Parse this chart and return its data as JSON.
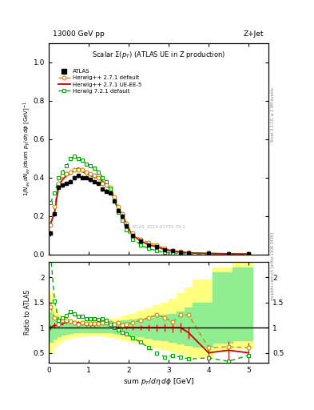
{
  "title_top": "13000 GeV pp",
  "title_right": "Z+Jet",
  "plot_title": "Scalar Σ(p_T) (ATLAS UE in Z production)",
  "ylabel_main": "1/N_{ev} dN_{ev}/dsum p_T/dη dφ  [GeV]^{-1}",
  "ylabel_ratio": "Ratio to ATLAS",
  "xlabel": "sum p_T/dη dφ [GeV]",
  "watermark": "ATLAS_2019-01735-39-1",
  "rivet_text": "Rivet 3.1.10, ≥ 2.9M events",
  "arxiv_text": "mcplots.cern.ch [arXiv:1306.3436]",
  "atlas_x": [
    0.05,
    0.15,
    0.25,
    0.35,
    0.45,
    0.55,
    0.65,
    0.75,
    0.85,
    0.95,
    1.05,
    1.15,
    1.25,
    1.35,
    1.45,
    1.55,
    1.65,
    1.75,
    1.85,
    1.95,
    2.1,
    2.3,
    2.5,
    2.7,
    2.9,
    3.1,
    3.3,
    3.5,
    4.0,
    4.5,
    5.0
  ],
  "atlas_y": [
    0.11,
    0.21,
    0.35,
    0.36,
    0.37,
    0.38,
    0.4,
    0.41,
    0.4,
    0.4,
    0.39,
    0.38,
    0.37,
    0.34,
    0.33,
    0.32,
    0.28,
    0.23,
    0.2,
    0.15,
    0.1,
    0.07,
    0.05,
    0.04,
    0.025,
    0.018,
    0.012,
    0.008,
    0.005,
    0.003,
    0.002
  ],
  "atlas_yerr": [
    0.015,
    0.012,
    0.01,
    0.01,
    0.01,
    0.01,
    0.01,
    0.01,
    0.01,
    0.01,
    0.01,
    0.01,
    0.01,
    0.01,
    0.01,
    0.01,
    0.01,
    0.01,
    0.01,
    0.01,
    0.008,
    0.006,
    0.005,
    0.004,
    0.003,
    0.003,
    0.002,
    0.002,
    0.001,
    0.001,
    0.001
  ],
  "hw271_x": [
    0.05,
    0.15,
    0.25,
    0.35,
    0.45,
    0.55,
    0.65,
    0.75,
    0.85,
    0.95,
    1.05,
    1.15,
    1.25,
    1.35,
    1.45,
    1.55,
    1.65,
    1.75,
    1.85,
    1.95,
    2.1,
    2.3,
    2.5,
    2.7,
    2.9,
    3.1,
    3.3,
    3.5,
    4.0,
    4.5,
    5.0
  ],
  "hw271_y": [
    0.155,
    0.25,
    0.37,
    0.41,
    0.42,
    0.43,
    0.44,
    0.44,
    0.44,
    0.43,
    0.42,
    0.41,
    0.4,
    0.37,
    0.36,
    0.35,
    0.3,
    0.25,
    0.21,
    0.16,
    0.11,
    0.08,
    0.06,
    0.05,
    0.03,
    0.02,
    0.015,
    0.01,
    0.006,
    0.004,
    0.003
  ],
  "hw271ue_x": [
    0.05,
    0.15,
    0.25,
    0.35,
    0.45,
    0.55,
    0.65,
    0.75,
    0.85,
    0.95,
    1.05,
    1.15,
    1.25,
    1.35,
    1.45,
    1.55,
    1.65,
    1.75,
    1.85,
    1.95,
    2.1,
    2.3,
    2.5,
    2.7,
    2.9,
    3.1,
    3.3,
    3.5,
    4.0,
    4.5,
    5.0
  ],
  "hw271ue_y": [
    0.16,
    0.22,
    0.36,
    0.39,
    0.41,
    0.42,
    0.44,
    0.45,
    0.43,
    0.42,
    0.41,
    0.4,
    0.4,
    0.38,
    0.36,
    0.34,
    0.28,
    0.23,
    0.2,
    0.15,
    0.1,
    0.07,
    0.05,
    0.04,
    0.025,
    0.018,
    0.012,
    0.008,
    0.005,
    0.003,
    0.002
  ],
  "hw721_x": [
    0.05,
    0.15,
    0.25,
    0.35,
    0.45,
    0.55,
    0.65,
    0.75,
    0.85,
    0.95,
    1.05,
    1.15,
    1.25,
    1.35,
    1.45,
    1.55,
    1.65,
    1.75,
    1.85,
    1.95,
    2.1,
    2.3,
    2.5,
    2.7,
    2.9,
    3.1,
    3.3,
    3.5,
    4.0,
    4.5,
    5.0
  ],
  "hw721_y": [
    0.27,
    0.32,
    0.4,
    0.43,
    0.46,
    0.5,
    0.51,
    0.5,
    0.49,
    0.47,
    0.46,
    0.45,
    0.43,
    0.4,
    0.38,
    0.34,
    0.28,
    0.22,
    0.18,
    0.13,
    0.08,
    0.05,
    0.03,
    0.02,
    0.01,
    0.008,
    0.005,
    0.003,
    0.002,
    0.001,
    0.001
  ],
  "ratio_hw271_y": [
    1.41,
    1.19,
    1.06,
    1.14,
    1.14,
    1.13,
    1.1,
    1.07,
    1.1,
    1.075,
    1.08,
    1.08,
    1.08,
    1.09,
    1.09,
    1.09,
    1.07,
    1.09,
    1.05,
    1.07,
    1.1,
    1.14,
    1.2,
    1.25,
    1.2,
    1.11,
    1.25,
    1.25,
    0.6,
    0.62,
    0.6
  ],
  "ratio_hw271ue_y": [
    1.0,
    1.05,
    1.03,
    1.08,
    1.11,
    1.11,
    1.1,
    1.1,
    1.075,
    1.05,
    1.05,
    1.05,
    1.08,
    1.12,
    1.09,
    1.06,
    1.0,
    1.0,
    1.0,
    1.0,
    1.0,
    1.0,
    1.0,
    1.0,
    1.0,
    1.0,
    1.0,
    0.9,
    0.5,
    0.55,
    0.5
  ],
  "ratio_hw271ue_yerr": [
    0.05,
    0.04,
    0.03,
    0.03,
    0.03,
    0.03,
    0.03,
    0.03,
    0.03,
    0.03,
    0.03,
    0.03,
    0.03,
    0.03,
    0.03,
    0.03,
    0.03,
    0.03,
    0.03,
    0.03,
    0.04,
    0.05,
    0.06,
    0.07,
    0.08,
    0.09,
    0.1,
    0.12,
    0.15,
    0.18,
    0.2
  ],
  "ratio_hw721_y": [
    2.45,
    1.52,
    1.14,
    1.19,
    1.24,
    1.32,
    1.275,
    1.22,
    1.225,
    1.175,
    1.18,
    1.18,
    1.16,
    1.18,
    1.15,
    1.06,
    1.0,
    0.957,
    0.9,
    0.87,
    0.8,
    0.71,
    0.6,
    0.5,
    0.42,
    0.44,
    0.42,
    0.375,
    0.4,
    0.33,
    0.45
  ],
  "band_edges_x": [
    0.0,
    0.1,
    0.2,
    0.3,
    0.4,
    0.5,
    0.6,
    0.7,
    0.8,
    0.9,
    1.0,
    1.1,
    1.2,
    1.3,
    1.4,
    1.5,
    1.6,
    1.7,
    1.8,
    1.9,
    2.0,
    2.2,
    2.4,
    2.6,
    2.8,
    3.0,
    3.2,
    3.4,
    3.6,
    4.1,
    4.6,
    5.1
  ],
  "band_green_lo": [
    0.72,
    0.78,
    0.83,
    0.86,
    0.88,
    0.89,
    0.9,
    0.91,
    0.91,
    0.91,
    0.91,
    0.91,
    0.91,
    0.91,
    0.9,
    0.9,
    0.89,
    0.88,
    0.87,
    0.86,
    0.85,
    0.83,
    0.8,
    0.77,
    0.74,
    0.71,
    0.68,
    0.65,
    0.62,
    0.7,
    0.75,
    0.75
  ],
  "band_green_hi": [
    1.3,
    1.2,
    1.15,
    1.12,
    1.11,
    1.1,
    1.1,
    1.1,
    1.1,
    1.1,
    1.1,
    1.1,
    1.1,
    1.1,
    1.11,
    1.11,
    1.12,
    1.13,
    1.14,
    1.15,
    1.16,
    1.18,
    1.2,
    1.22,
    1.25,
    1.28,
    1.32,
    1.4,
    1.5,
    2.1,
    2.2,
    2.2
  ],
  "band_yellow_lo": [
    0.5,
    0.62,
    0.7,
    0.75,
    0.78,
    0.8,
    0.82,
    0.83,
    0.84,
    0.84,
    0.84,
    0.84,
    0.84,
    0.84,
    0.83,
    0.82,
    0.81,
    0.79,
    0.77,
    0.75,
    0.73,
    0.69,
    0.65,
    0.61,
    0.57,
    0.53,
    0.49,
    0.45,
    0.42,
    0.55,
    0.6,
    0.6
  ],
  "band_yellow_hi": [
    1.7,
    1.4,
    1.28,
    1.22,
    1.18,
    1.16,
    1.15,
    1.15,
    1.15,
    1.15,
    1.15,
    1.15,
    1.15,
    1.15,
    1.16,
    1.17,
    1.18,
    1.2,
    1.22,
    1.25,
    1.28,
    1.33,
    1.38,
    1.44,
    1.5,
    1.58,
    1.68,
    1.8,
    1.95,
    2.2,
    2.3,
    2.3
  ],
  "xlim": [
    0,
    5.5
  ],
  "ylim_main": [
    0,
    1.1
  ],
  "ylim_ratio": [
    0.3,
    2.3
  ],
  "yticks_main": [
    0.0,
    0.2,
    0.4,
    0.6,
    0.8,
    1.0
  ],
  "yticks_ratio": [
    0.5,
    1.0,
    1.5,
    2.0
  ],
  "xticks": [
    0,
    1,
    2,
    3,
    4,
    5
  ],
  "color_atlas": "#000000",
  "color_hw271": "#cc8800",
  "color_hw271ue": "#cc0000",
  "color_hw721": "#00aa00",
  "color_band_green": "#90ee90",
  "color_band_yellow": "#ffff80"
}
